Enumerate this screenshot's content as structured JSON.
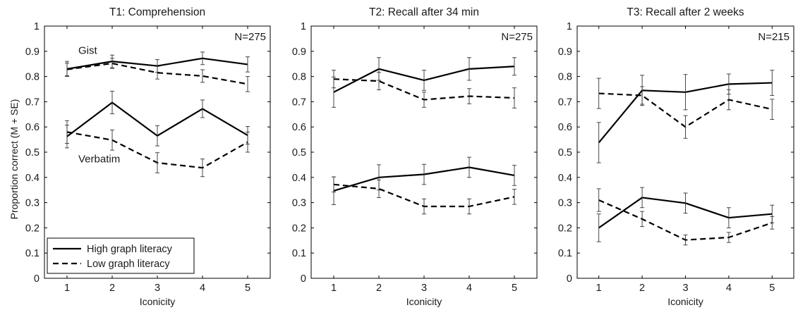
{
  "chart_data": [
    {
      "type": "line",
      "title": "T1: Comprehension",
      "xlabel": "Iconicity",
      "ylabel": "Proportion correct (M + SE)",
      "n_label": "N=275",
      "x": [
        1,
        2,
        3,
        4,
        5
      ],
      "x_ticks": [
        "1",
        "2",
        "3",
        "4",
        "5"
      ],
      "xlim": [
        0.5,
        5.5
      ],
      "ylim": [
        0,
        1
      ],
      "y_ticks": [
        "0",
        "0.1",
        "0.2",
        "0.3",
        "0.4",
        "0.5",
        "0.6",
        "0.7",
        "0.8",
        "0.9",
        "1"
      ],
      "grid": false,
      "annotations": [
        {
          "text": "Gist",
          "at": [
            1.25,
            0.89
          ]
        },
        {
          "text": "Verbatim",
          "at": [
            1.25,
            0.46
          ]
        }
      ],
      "legend": {
        "location": "bottom-left",
        "entries": [
          {
            "label": "High graph literacy",
            "style": "solid"
          },
          {
            "label": "Low graph literacy",
            "style": "dashed"
          }
        ]
      },
      "series": [
        {
          "group": "Gist",
          "literacy": "High graph literacy",
          "style": "solid",
          "values": [
            0.83,
            0.86,
            0.842,
            0.872,
            0.848
          ],
          "se": [
            0.03,
            0.025,
            0.025,
            0.025,
            0.03
          ]
        },
        {
          "group": "Gist",
          "literacy": "Low graph literacy",
          "style": "dashed",
          "values": [
            0.828,
            0.852,
            0.815,
            0.802,
            0.77
          ],
          "se": [
            0.025,
            0.02,
            0.025,
            0.025,
            0.03
          ]
        },
        {
          "group": "Verbatim",
          "literacy": "High graph literacy",
          "style": "solid",
          "values": [
            0.562,
            0.697,
            0.565,
            0.672,
            0.567
          ],
          "se": [
            0.045,
            0.045,
            0.04,
            0.035,
            0.035
          ]
        },
        {
          "group": "Verbatim",
          "literacy": "Low graph literacy",
          "style": "dashed",
          "values": [
            0.58,
            0.548,
            0.458,
            0.438,
            0.54
          ],
          "se": [
            0.045,
            0.04,
            0.04,
            0.035,
            0.04
          ]
        }
      ]
    },
    {
      "type": "line",
      "title": "T2: Recall after 34 min",
      "xlabel": "Iconicity",
      "n_label": "N=275",
      "x": [
        1,
        2,
        3,
        4,
        5
      ],
      "x_ticks": [
        "1",
        "2",
        "3",
        "4",
        "5"
      ],
      "xlim": [
        0.5,
        5.5
      ],
      "ylim": [
        0,
        1
      ],
      "y_ticks": [
        "0",
        "0.1",
        "0.2",
        "0.3",
        "0.4",
        "0.5",
        "0.6",
        "0.7",
        "0.8",
        "0.9",
        "1"
      ],
      "grid": false,
      "series": [
        {
          "group": "Gist",
          "literacy": "High graph literacy",
          "style": "solid",
          "values": [
            0.738,
            0.83,
            0.785,
            0.83,
            0.84
          ],
          "se": [
            0.06,
            0.045,
            0.04,
            0.045,
            0.035
          ]
        },
        {
          "group": "Gist",
          "literacy": "Low graph literacy",
          "style": "dashed",
          "values": [
            0.79,
            0.782,
            0.708,
            0.722,
            0.715
          ],
          "se": [
            0.035,
            0.035,
            0.03,
            0.03,
            0.04
          ]
        },
        {
          "group": "Verbatim",
          "literacy": "High graph literacy",
          "style": "solid",
          "values": [
            0.347,
            0.4,
            0.412,
            0.44,
            0.408
          ],
          "se": [
            0.055,
            0.05,
            0.04,
            0.04,
            0.04
          ]
        },
        {
          "group": "Verbatim",
          "literacy": "Low graph literacy",
          "style": "dashed",
          "values": [
            0.372,
            0.355,
            0.285,
            0.285,
            0.323
          ],
          "se": [
            0.03,
            0.035,
            0.03,
            0.03,
            0.03
          ]
        }
      ]
    },
    {
      "type": "line",
      "title": "T3: Recall after 2 weeks",
      "xlabel": "Iconicity",
      "n_label": "N=215",
      "x": [
        1,
        2,
        3,
        4,
        5
      ],
      "x_ticks": [
        "1",
        "2",
        "3",
        "4",
        "5"
      ],
      "xlim": [
        0.5,
        5.5
      ],
      "ylim": [
        0,
        1
      ],
      "y_ticks": [
        "0",
        "0.1",
        "0.2",
        "0.3",
        "0.4",
        "0.5",
        "0.6",
        "0.7",
        "0.8",
        "0.9",
        "1"
      ],
      "grid": false,
      "series": [
        {
          "group": "Gist",
          "literacy": "High graph literacy",
          "style": "solid",
          "values": [
            0.538,
            0.745,
            0.738,
            0.77,
            0.775
          ],
          "se": [
            0.08,
            0.06,
            0.07,
            0.04,
            0.05
          ]
        },
        {
          "group": "Gist",
          "literacy": "Low graph literacy",
          "style": "dashed",
          "values": [
            0.733,
            0.725,
            0.6,
            0.708,
            0.67
          ],
          "se": [
            0.06,
            0.035,
            0.045,
            0.04,
            0.04
          ]
        },
        {
          "group": "Verbatim",
          "literacy": "High graph literacy",
          "style": "solid",
          "values": [
            0.2,
            0.32,
            0.298,
            0.24,
            0.255
          ],
          "se": [
            0.055,
            0.04,
            0.04,
            0.04,
            0.035
          ]
        },
        {
          "group": "Verbatim",
          "literacy": "Low graph literacy",
          "style": "dashed",
          "values": [
            0.31,
            0.235,
            0.152,
            0.162,
            0.22
          ],
          "se": [
            0.045,
            0.03,
            0.02,
            0.02,
            0.025
          ]
        }
      ]
    }
  ]
}
